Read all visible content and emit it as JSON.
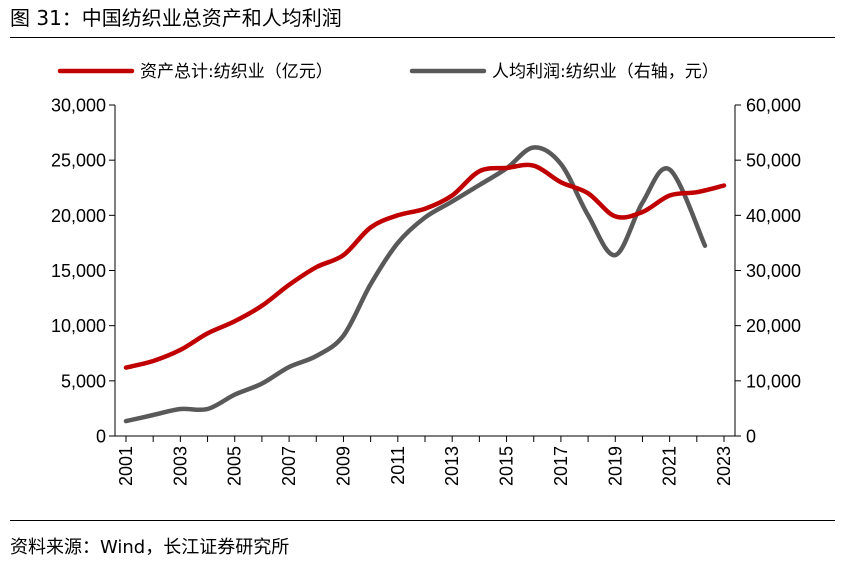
{
  "figure": {
    "title": "图 31：中国纺织业总资产和人均利润",
    "source": "资料来源：Wind，长江证券研究所"
  },
  "chart_data": {
    "type": "line",
    "x": [
      2001,
      2002,
      2003,
      2004,
      2005,
      2006,
      2007,
      2008,
      2009,
      2010,
      2011,
      2012,
      2013,
      2014,
      2015,
      2016,
      2017,
      2018,
      2019,
      2020,
      2021,
      2022,
      2023
    ],
    "xticks": [
      "2001",
      "2003",
      "2005",
      "2007",
      "2009",
      "2011",
      "2013",
      "2015",
      "2017",
      "2019",
      "2021",
      "2023"
    ],
    "left_axis": {
      "ylim": [
        0,
        30000
      ],
      "ticks": [
        "0",
        "5,000",
        "10,000",
        "15,000",
        "20,000",
        "25,000",
        "30,000"
      ]
    },
    "right_axis": {
      "ylim": [
        0,
        60000
      ],
      "ticks": [
        "0",
        "10,000",
        "20,000",
        "30,000",
        "40,000",
        "50,000",
        "60,000"
      ]
    },
    "legend_position": "top",
    "series": [
      {
        "name": "资产总计:纺织业（亿元）",
        "axis": "left",
        "color": "#c00000",
        "x": [
          2001,
          2002,
          2003,
          2004,
          2005,
          2006,
          2007,
          2008,
          2009,
          2010,
          2011,
          2012,
          2013,
          2014,
          2015,
          2016,
          2017,
          2018,
          2019,
          2020,
          2021,
          2022,
          2023
        ],
        "values": [
          6200,
          6800,
          7800,
          9300,
          10400,
          11800,
          13700,
          15300,
          16400,
          18900,
          20000,
          20600,
          21800,
          24000,
          24300,
          24500,
          23000,
          22000,
          19900,
          20300,
          21800,
          22100,
          22700
        ]
      },
      {
        "name": "人均利润:纺织业（右轴，元）",
        "axis": "right",
        "color": "#595959",
        "x": [
          2001,
          2002,
          2003,
          2004,
          2005,
          2006,
          2007,
          2008,
          2009,
          2010,
          2011,
          2012,
          2013,
          2014,
          2015,
          2016,
          2017,
          2018,
          2019,
          2020,
          2021,
          2022.3
        ],
        "values": [
          2700,
          3800,
          4900,
          4900,
          7500,
          9500,
          12500,
          14500,
          18200,
          27500,
          35000,
          39600,
          42500,
          45500,
          48500,
          52300,
          49300,
          40000,
          32800,
          42300,
          48300,
          34500
        ]
      }
    ]
  }
}
